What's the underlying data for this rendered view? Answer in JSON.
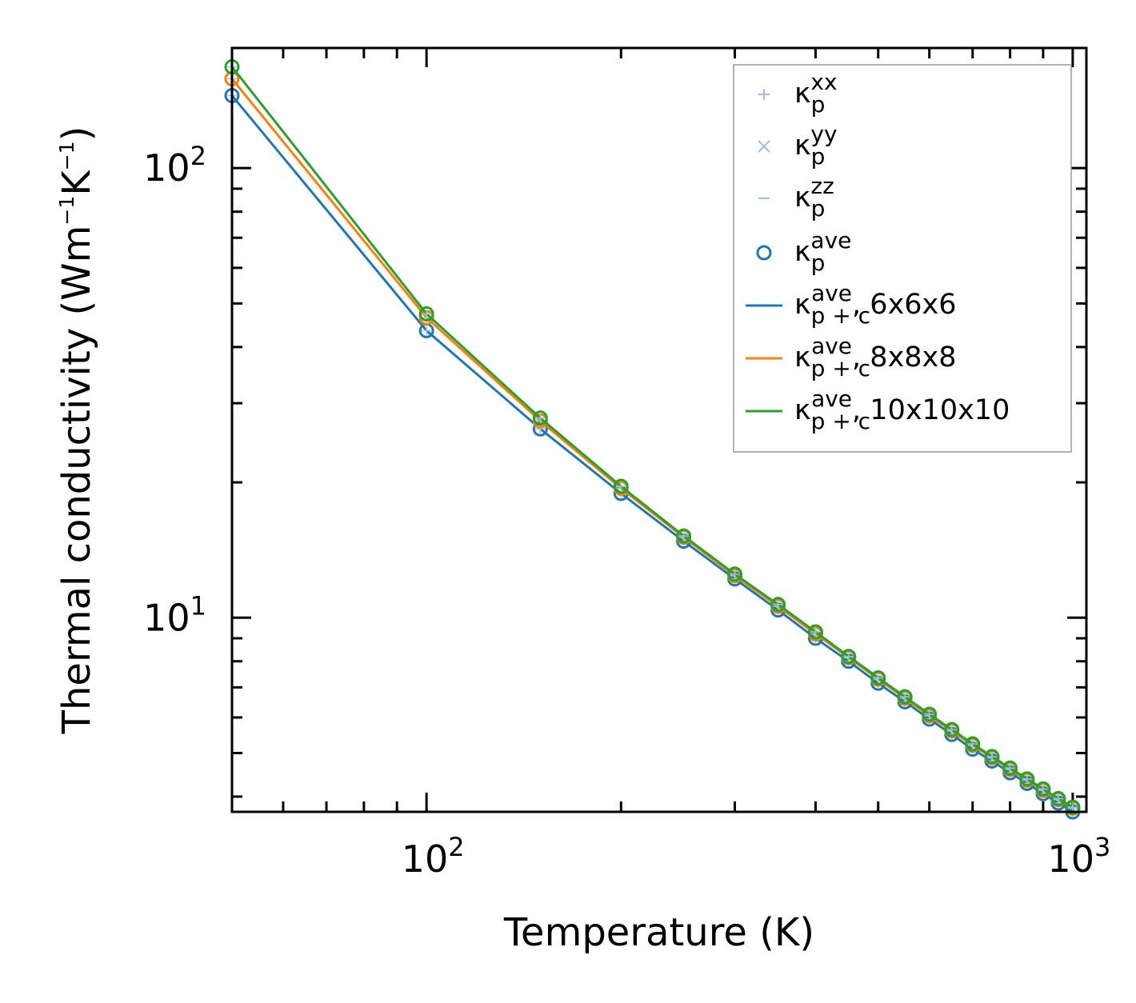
{
  "chart_data": {
    "type": "line",
    "xscale": "log",
    "yscale": "log",
    "xlabel": "Temperature (K)",
    "ylabel": {
      "text": "Thermal conductivity (Wm",
      "mid": "K",
      "close": ")",
      "exp": "−1"
    },
    "xlim": [
      50,
      1050
    ],
    "ylim": [
      3.7,
      185
    ],
    "x_ticks": [
      {
        "value": 100,
        "base": "10",
        "exp": "2"
      },
      {
        "value": 1000,
        "base": "10",
        "exp": "3"
      }
    ],
    "y_ticks": [
      {
        "value": 10,
        "base": "10",
        "exp": "1"
      },
      {
        "value": 100,
        "base": "10",
        "exp": "2"
      }
    ],
    "x": [
      50,
      100,
      150,
      200,
      250,
      300,
      350,
      400,
      450,
      500,
      550,
      600,
      650,
      700,
      750,
      800,
      850,
      900,
      950,
      1000
    ],
    "series": [
      {
        "name": "6x6x6",
        "color": "#1f77b4",
        "values": [
          145,
          43.5,
          26.3,
          18.9,
          14.8,
          12.2,
          10.4,
          9.0,
          8.0,
          7.15,
          6.5,
          5.95,
          5.5,
          5.1,
          4.8,
          4.52,
          4.28,
          4.06,
          3.87,
          3.7
        ]
      },
      {
        "name": "8x8x8",
        "color": "#ff7f0e",
        "values": [
          158,
          46.5,
          27.4,
          19.4,
          15.1,
          12.4,
          10.6,
          9.2,
          8.15,
          7.3,
          6.62,
          6.05,
          5.6,
          5.2,
          4.88,
          4.6,
          4.35,
          4.13,
          3.94,
          3.77
        ]
      },
      {
        "name": "10x10x10",
        "color": "#2ca02c",
        "values": [
          168,
          47.4,
          27.8,
          19.6,
          15.2,
          12.5,
          10.7,
          9.3,
          8.2,
          7.35,
          6.67,
          6.1,
          5.64,
          5.24,
          4.91,
          4.63,
          4.38,
          4.16,
          3.96,
          3.79
        ]
      }
    ],
    "legend": {
      "position": "top-right",
      "symbol": "κ",
      "entries": [
        {
          "marker": "plus",
          "color": "#9cc2e0",
          "sub": "p",
          "sup": "xx",
          "suffix": ""
        },
        {
          "marker": "cross",
          "color": "#9cc2e0",
          "sub": "p",
          "sup": "yy",
          "suffix": ""
        },
        {
          "marker": "dash",
          "color": "#9cc2e0",
          "sub": "p",
          "sup": "zz",
          "suffix": ""
        },
        {
          "marker": "circle",
          "color": "#1f77b4",
          "sub": "p",
          "sup": "ave",
          "suffix": ""
        },
        {
          "marker": "line",
          "color": "#1f77b4",
          "sub": "p + c",
          "sup": "ave",
          "suffix": ", 6x6x6"
        },
        {
          "marker": "line",
          "color": "#ff7f0e",
          "sub": "p + c",
          "sup": "ave",
          "suffix": ", 8x8x8"
        },
        {
          "marker": "line",
          "color": "#2ca02c",
          "sub": "p + c",
          "sup": "ave",
          "suffix": ", 10x10x10"
        }
      ]
    }
  }
}
